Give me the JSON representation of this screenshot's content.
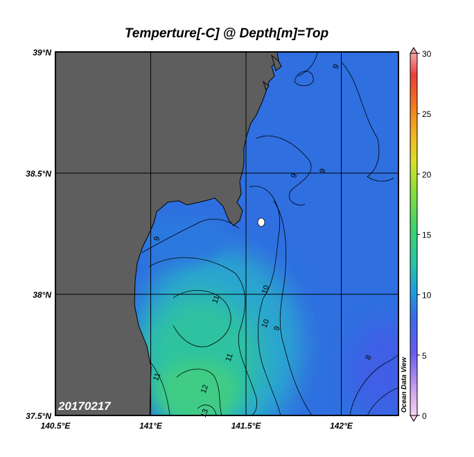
{
  "chart_data": {
    "type": "heatmap",
    "title": "Temperture[-C] @ Depth[m]=Top",
    "date_label": "20170217",
    "watermark": "Ocean Data View",
    "x_axis": {
      "range": [
        140.5,
        142.3
      ],
      "ticks": [
        140.5,
        141.0,
        141.5,
        142.0
      ],
      "tick_labels": [
        "140.5°E",
        "141°E",
        "141.5°E",
        "142°E"
      ]
    },
    "y_axis": {
      "range": [
        37.5,
        39.0
      ],
      "ticks": [
        37.5,
        38.0,
        38.5,
        39.0
      ],
      "tick_labels": [
        "37.5°N",
        "38°N",
        "38.5°N",
        "39°N"
      ]
    },
    "colorbar": {
      "range": [
        0,
        30
      ],
      "ticks": [
        0,
        5,
        10,
        15,
        20,
        25,
        30
      ],
      "tick_labels": [
        "0",
        "5",
        "10",
        "15",
        "20",
        "25",
        "30"
      ]
    },
    "contour_labels": [
      {
        "text": "9",
        "lon": 141.97,
        "lat": 38.94
      },
      {
        "text": "9",
        "lon": 141.75,
        "lat": 38.49
      },
      {
        "text": "9",
        "lon": 141.9,
        "lat": 38.51
      },
      {
        "text": "9",
        "lon": 141.03,
        "lat": 38.23
      },
      {
        "text": "10",
        "lon": 141.6,
        "lat": 38.02
      },
      {
        "text": "10",
        "lon": 141.6,
        "lat": 37.88
      },
      {
        "text": "9",
        "lon": 141.66,
        "lat": 37.86
      },
      {
        "text": "11",
        "lon": 141.34,
        "lat": 37.98
      },
      {
        "text": "11",
        "lon": 141.41,
        "lat": 37.74
      },
      {
        "text": "11",
        "lon": 141.03,
        "lat": 37.66
      },
      {
        "text": "12",
        "lon": 141.28,
        "lat": 37.61
      },
      {
        "text": "13",
        "lon": 141.28,
        "lat": 37.51
      },
      {
        "text": "8",
        "lon": 142.14,
        "lat": 37.74
      }
    ],
    "colors": {
      "land": "#5e5e5e",
      "ocean_base": "#2f6fe0"
    }
  }
}
